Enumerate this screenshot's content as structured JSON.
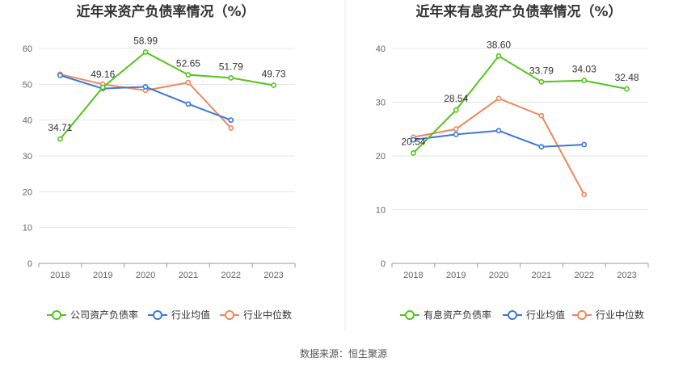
{
  "source": "数据来源：恒生聚源",
  "chart_data": [
    {
      "type": "line",
      "title": "近年来资产负债率情况（%）",
      "categories": [
        "2018",
        "2019",
        "2020",
        "2021",
        "2022",
        "2023"
      ],
      "ylim": [
        0,
        60
      ],
      "yticks": [
        0,
        10,
        20,
        30,
        40,
        50,
        60
      ],
      "grid": true,
      "legend_position": "bottom",
      "series": [
        {
          "name": "公司资产负债率",
          "color": "#52c41a",
          "values": [
            34.71,
            49.16,
            58.99,
            52.65,
            51.79,
            49.73
          ],
          "labels": [
            "34.71",
            "49.16",
            "58.99",
            "52.65",
            "51.79",
            "49.73"
          ]
        },
        {
          "name": "行业均值",
          "color": "#3a78d8",
          "values": [
            52.5,
            48.8,
            49.3,
            44.5,
            40.0,
            null
          ],
          "labels": null
        },
        {
          "name": "行业中位数",
          "color": "#f0875a",
          "values": [
            52.8,
            50.0,
            48.3,
            50.5,
            37.8,
            null
          ],
          "labels": null
        }
      ]
    },
    {
      "type": "line",
      "title": "近年来有息资产负债率情况（%）",
      "categories": [
        "2018",
        "2019",
        "2020",
        "2021",
        "2022",
        "2023"
      ],
      "ylim": [
        0,
        40
      ],
      "yticks": [
        0,
        10,
        20,
        30,
        40
      ],
      "grid": true,
      "legend_position": "bottom",
      "series": [
        {
          "name": "有息资产负债率",
          "color": "#52c41a",
          "values": [
            20.54,
            28.54,
            38.6,
            33.79,
            34.03,
            32.48
          ],
          "labels": [
            "20.54",
            "28.54",
            "38.60",
            "33.79",
            "34.03",
            "32.48"
          ]
        },
        {
          "name": "行业均值",
          "color": "#3a78d8",
          "values": [
            23.0,
            24.0,
            24.7,
            21.7,
            22.1,
            null
          ],
          "labels": null
        },
        {
          "name": "行业中位数",
          "color": "#f0875a",
          "values": [
            23.5,
            25.0,
            30.7,
            27.5,
            12.8,
            null
          ],
          "labels": null
        }
      ]
    }
  ]
}
